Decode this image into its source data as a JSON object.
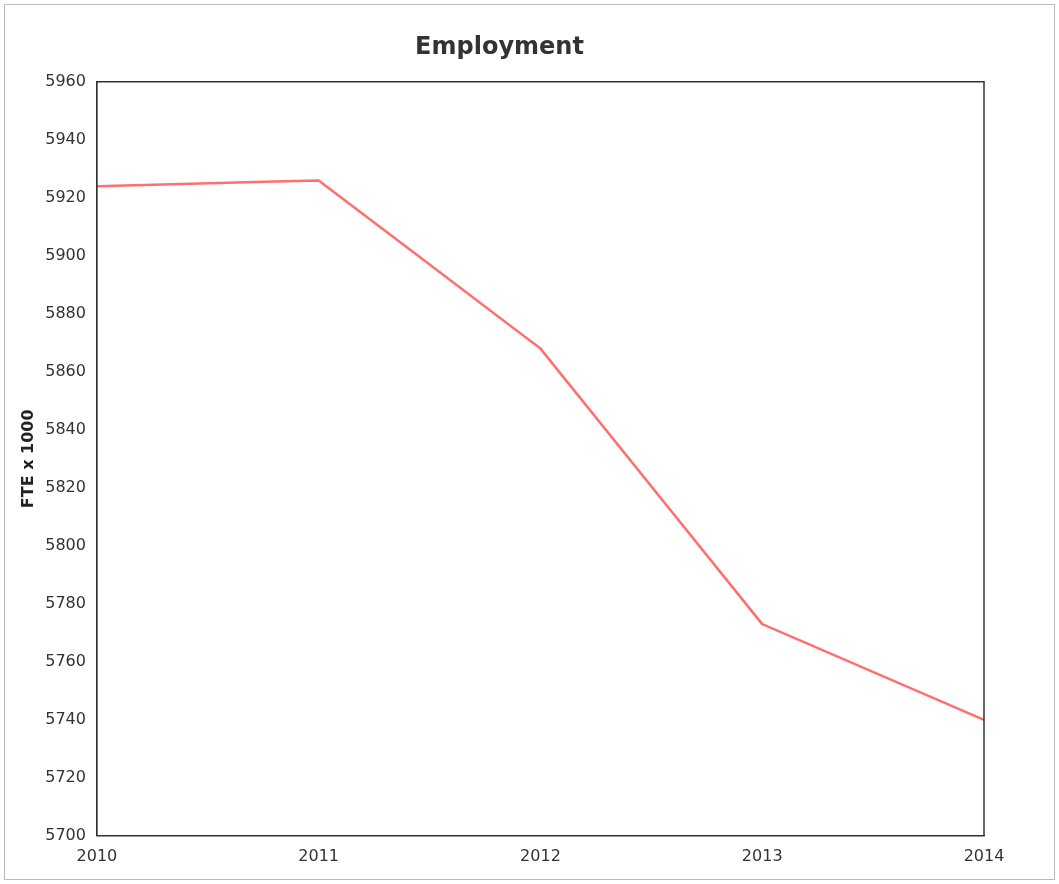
{
  "chart_data": {
    "type": "line",
    "title": "Employment",
    "ylabel": "FTE x 1000",
    "categories": [
      "2010",
      "2011",
      "2012",
      "2013",
      "2014"
    ],
    "series": [
      {
        "color": "#ff6f6f",
        "values": [
          5924,
          5926,
          5868,
          5773,
          5740
        ]
      }
    ],
    "ylim": [
      5700,
      5960
    ],
    "yticks": [
      5700,
      5720,
      5740,
      5760,
      5780,
      5800,
      5820,
      5840,
      5860,
      5880,
      5900,
      5920,
      5940,
      5960
    ],
    "grid": false,
    "legend": false,
    "marker": "none",
    "line_style": "solid"
  }
}
